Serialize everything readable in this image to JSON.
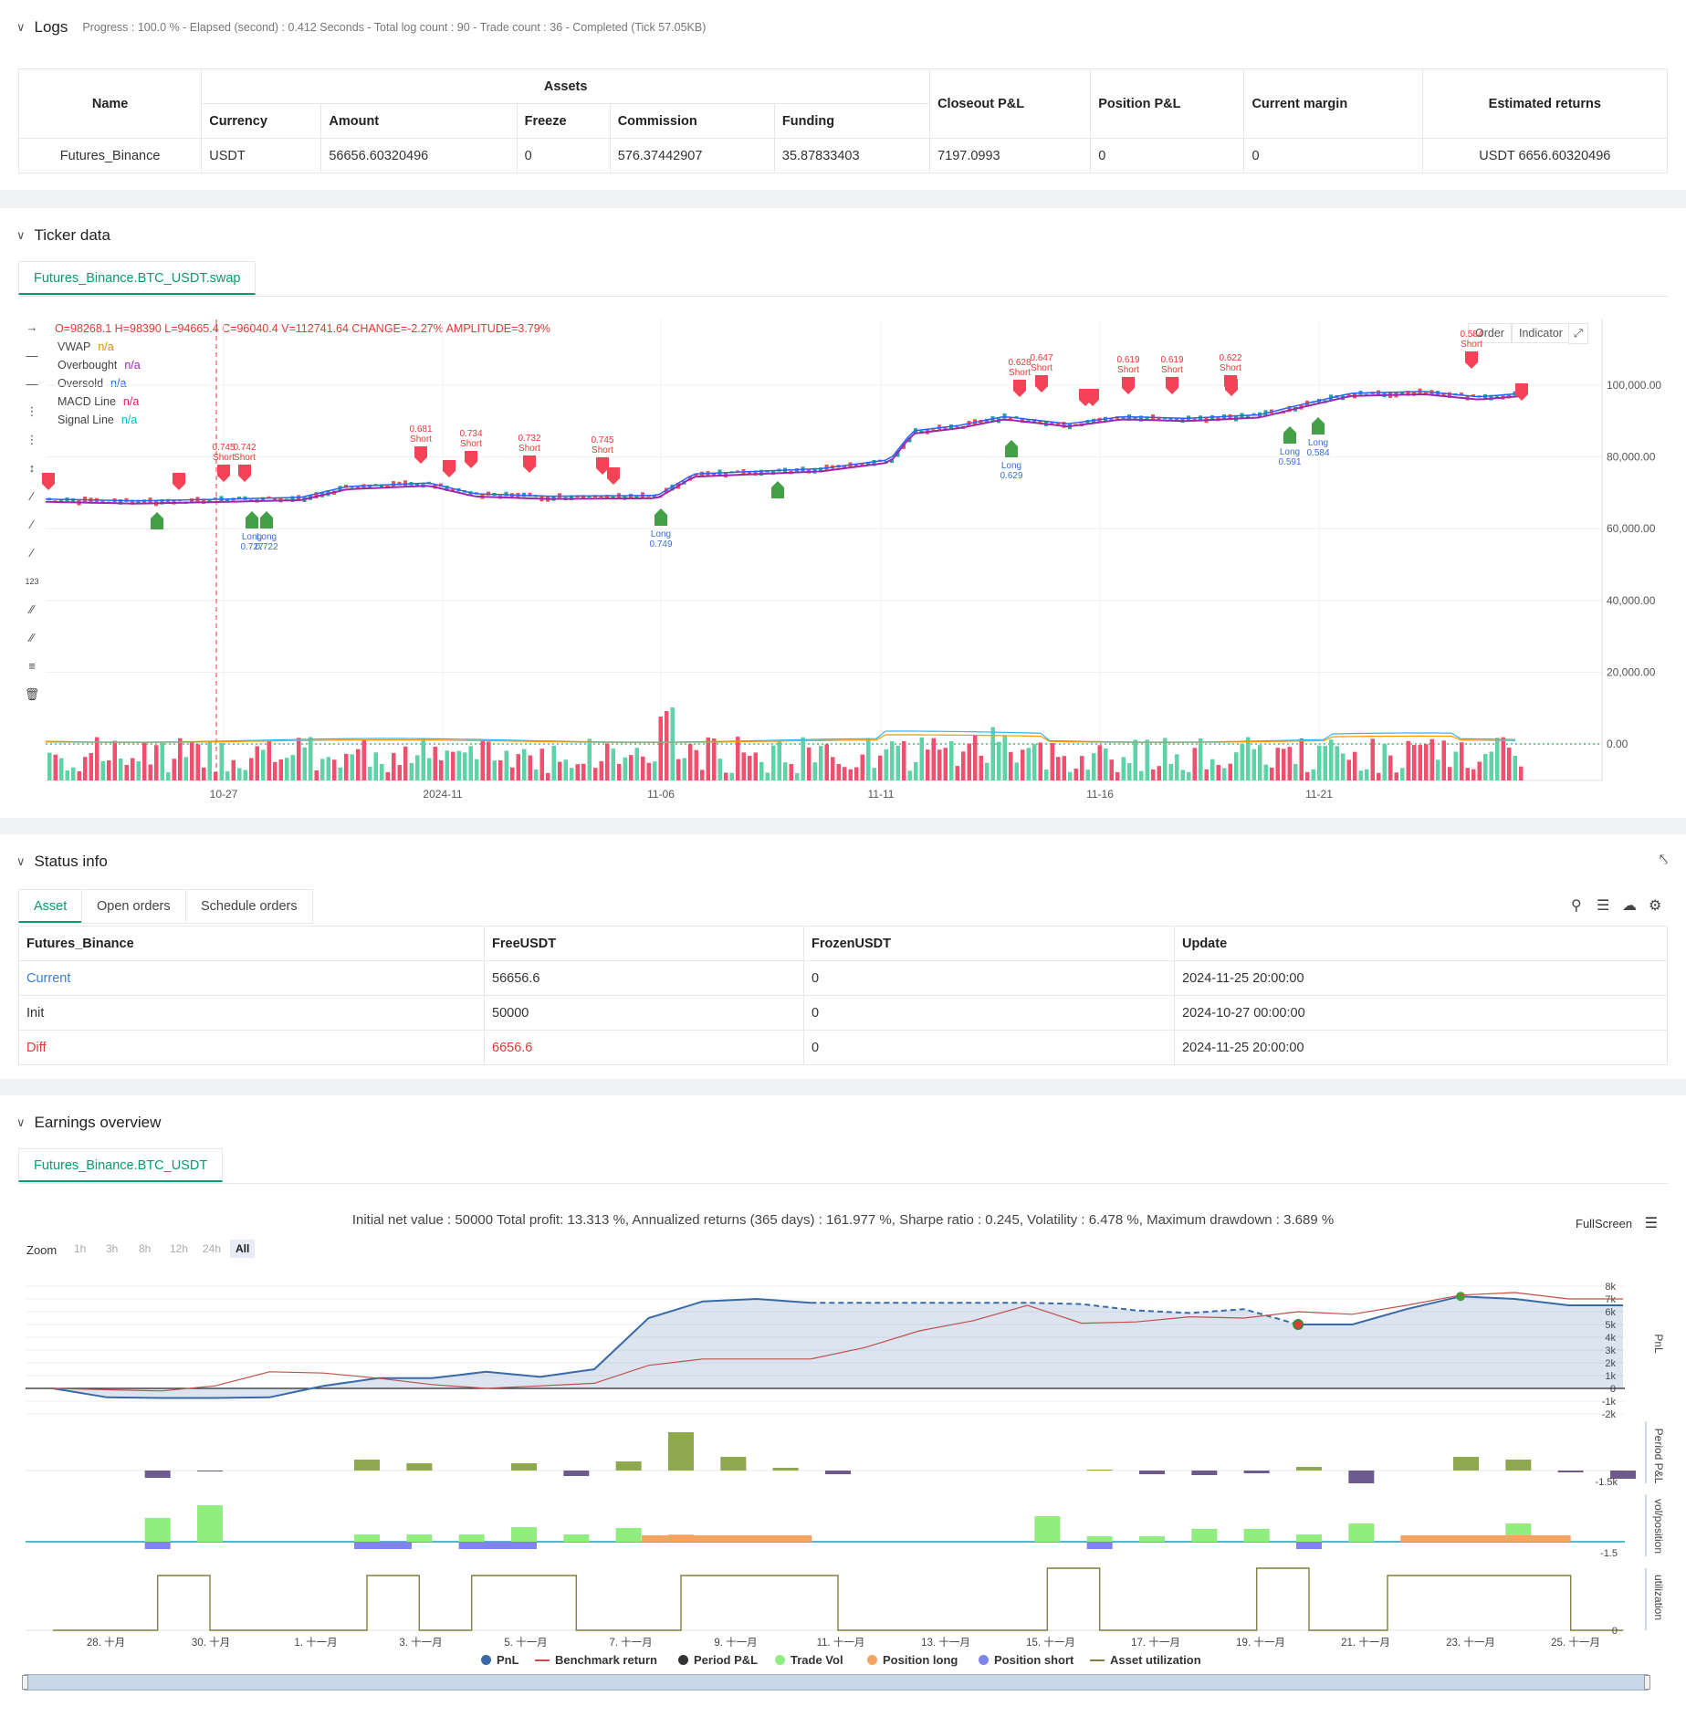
{
  "logs": {
    "title": "Logs",
    "status": "Progress : 100.0 % - Elapsed (second) : 0.412  Seconds - Total log count : 90 - Trade count : 36 - Completed (Tick 57.05KB)"
  },
  "assets_table": {
    "headers": {
      "name": "Name",
      "assets": "Assets",
      "currency": "Currency",
      "amount": "Amount",
      "freeze": "Freeze",
      "commission": "Commission",
      "funding": "Funding",
      "closeout": "Closeout P&L",
      "position": "Position P&L",
      "margin": "Current margin",
      "returns": "Estimated returns"
    },
    "row": {
      "name": "Futures_Binance",
      "currency": "USDT",
      "amount": "56656.60320496",
      "freeze": "0",
      "commission": "576.37442907",
      "funding": "35.87833403",
      "closeout": "7197.0993",
      "position": "0",
      "margin": "0",
      "returns": "USDT 6656.60320496"
    }
  },
  "ticker": {
    "title": "Ticker data",
    "tab": "Futures_Binance.BTC_USDT.swap",
    "ohlc_prefix": "O=98268.1 H=98390 L=94665.4 C=96040.4 V=112741.64 CHANGE=-2.27% AMPLITUDE=3.79%",
    "indicators": [
      {
        "name": "VWAP",
        "value": "n/a",
        "color": "#e08a00"
      },
      {
        "name": "Overbought",
        "value": "n/a",
        "color": "#9c27b0"
      },
      {
        "name": "Oversold",
        "value": "n/a",
        "color": "#2962ff"
      },
      {
        "name": "MACD Line",
        "value": "n/a",
        "color": "#e91e63"
      },
      {
        "name": "Signal Line",
        "value": "n/a",
        "color": "#00bcd4"
      }
    ],
    "buttons": {
      "order": "Order",
      "indicator": "Indicator"
    },
    "y_ticks": [
      "100,000.00",
      "80,000.00",
      "60,000.00",
      "40,000.00",
      "20,000.00",
      "0.00"
    ],
    "x_ticks": [
      "10-27",
      "2024-11",
      "11-06",
      "11-11",
      "11-16",
      "11-21"
    ],
    "signals": [
      {
        "type": "Short",
        "value": "0.745",
        "x": 245,
        "y": 505
      },
      {
        "type": "Short",
        "value": "0.742",
        "x": 268,
        "y": 505
      },
      {
        "type": "Long",
        "value": "0.727",
        "x": 276,
        "y": 583
      },
      {
        "type": "Long",
        "value": "0.722",
        "x": 292,
        "y": 583
      },
      {
        "type": "Short",
        "value": "0.681",
        "x": 461,
        "y": 485
      },
      {
        "type": "Short",
        "value": "0.734",
        "x": 516,
        "y": 490
      },
      {
        "type": "Short",
        "value": "0.732",
        "x": 580,
        "y": 495
      },
      {
        "type": "Short",
        "value": "0.745",
        "x": 660,
        "y": 497
      },
      {
        "type": "Long",
        "value": "0.749",
        "x": 724,
        "y": 580
      },
      {
        "type": "Short",
        "value": "0.628",
        "x": 1117,
        "y": 412
      },
      {
        "type": "Short",
        "value": "0.647",
        "x": 1141,
        "y": 407
      },
      {
        "type": "Long",
        "value": "0.629",
        "x": 1108,
        "y": 505
      },
      {
        "type": "Short",
        "value": "0.619",
        "x": 1236,
        "y": 409
      },
      {
        "type": "Short",
        "value": "0.619",
        "x": 1284,
        "y": 409
      },
      {
        "type": "Short",
        "value": "0.622",
        "x": 1348,
        "y": 407
      },
      {
        "type": "Long",
        "value": "0.591",
        "x": 1413,
        "y": 490
      },
      {
        "type": "Long",
        "value": "0.584",
        "x": 1444,
        "y": 480
      },
      {
        "type": "Short",
        "value": "0.584",
        "x": 1612,
        "y": 381
      }
    ]
  },
  "status": {
    "title": "Status info",
    "tabs": [
      "Asset",
      "Open orders",
      "Schedule orders"
    ],
    "headers": [
      "Futures_Binance",
      "FreeUSDT",
      "FrozenUSDT",
      "Update"
    ],
    "rows": [
      {
        "label": "Current",
        "free": "56656.6",
        "frozen": "0",
        "update": "2024-11-25 20:00:00",
        "label_color": "#3b7dd8",
        "free_color": "#333"
      },
      {
        "label": "Init",
        "free": "50000",
        "frozen": "0",
        "update": "2024-10-27 00:00:00",
        "label_color": "#333",
        "free_color": "#333"
      },
      {
        "label": "Diff",
        "free": "6656.6",
        "frozen": "0",
        "update": "2024-11-25 20:00:00",
        "label_color": "#e53935",
        "free_color": "#e53935"
      }
    ]
  },
  "earnings": {
    "title": "Earnings overview",
    "tab": "Futures_Binance.BTC_USDT",
    "summary": "Initial net value : 50000 Total profit: 13.313 %, Annualized returns (365 days) : 161.977 %, Sharpe ratio : 0.245, Volatility : 6.478 %, Maximum drawdown : 3.689 %",
    "fullscreen": "FullScreen",
    "zoom_label": "Zoom",
    "zoom_options": [
      "1h",
      "3h",
      "8h",
      "12h",
      "24h",
      "All"
    ],
    "pnl_ticks": [
      "8k",
      "7k",
      "6k",
      "5k",
      "4k",
      "3k",
      "2k",
      "1k",
      "0",
      "-1k",
      "-2k"
    ],
    "axis_labels": {
      "pnl": "PnL",
      "period": "Period P&L",
      "vol": "vol/position",
      "util": "utilization"
    },
    "small_ticks": {
      "period": "-1.5k",
      "vol": "-1.5",
      "util": "0"
    },
    "x_ticks": [
      "28. 十月",
      "30. 十月",
      "1. 十一月",
      "3. 十一月",
      "5. 十一月",
      "7. 十一月",
      "9. 十一月",
      "11. 十一月",
      "13. 十一月",
      "15. 十一月",
      "17. 十一月",
      "19. 十一月",
      "21. 十一月",
      "23. 十一月",
      "25. 十一月"
    ],
    "legend": [
      {
        "name": "PnL",
        "color": "#3a6aa6",
        "shape": "dot"
      },
      {
        "name": "Benchmark return",
        "color": "#c0504d",
        "shape": "line"
      },
      {
        "name": "Period P&L",
        "color": "#333333",
        "shape": "dot"
      },
      {
        "name": "Trade Vol",
        "color": "#90ee7e",
        "shape": "dot"
      },
      {
        "name": "Position long",
        "color": "#f4a460",
        "shape": "dot"
      },
      {
        "name": "Position short",
        "color": "#8085e9",
        "shape": "dot"
      },
      {
        "name": "Asset utilization",
        "color": "#7f7f3f",
        "shape": "line"
      }
    ]
  }
}
